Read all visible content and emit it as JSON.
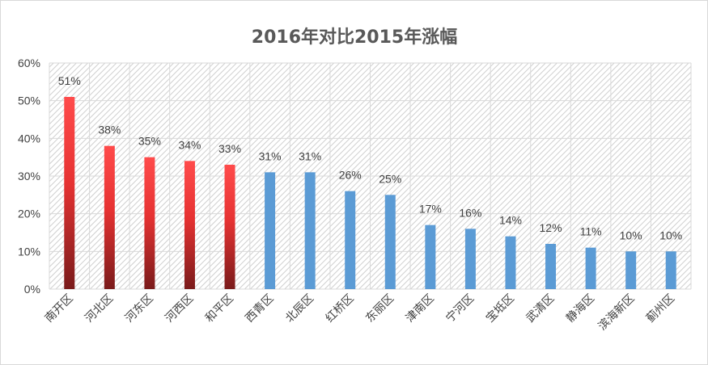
{
  "chart_data": {
    "type": "bar",
    "title": "2016年对比2015年涨幅",
    "xlabel": "",
    "ylabel": "",
    "ylim": [
      0,
      60
    ],
    "yticks": [
      "0%",
      "10%",
      "20%",
      "30%",
      "40%",
      "50%",
      "60%"
    ],
    "grid": true,
    "legend": "none",
    "categories": [
      "南开区",
      "河北区",
      "河东区",
      "河西区",
      "和平区",
      "西青区",
      "北辰区",
      "红桥区",
      "东丽区",
      "津南区",
      "宁河区",
      "宝坻区",
      "武清区",
      "静海区",
      "滨海新区",
      "蓟州区"
    ],
    "values": [
      51,
      38,
      35,
      34,
      33,
      31,
      31,
      26,
      25,
      17,
      16,
      14,
      12,
      11,
      10,
      10
    ],
    "value_labels": [
      "51%",
      "38%",
      "35%",
      "34%",
      "33%",
      "31%",
      "31%",
      "26%",
      "25%",
      "17%",
      "16%",
      "14%",
      "12%",
      "11%",
      "10%",
      "10%"
    ],
    "highlight_count": 5,
    "colors": {
      "highlight_top": "#ff4b4b",
      "highlight_bottom": "#7a1b1b",
      "bar": "#5b9bd5",
      "gridline": "#d9d9d9",
      "hatch": "#d0d0d0"
    }
  }
}
